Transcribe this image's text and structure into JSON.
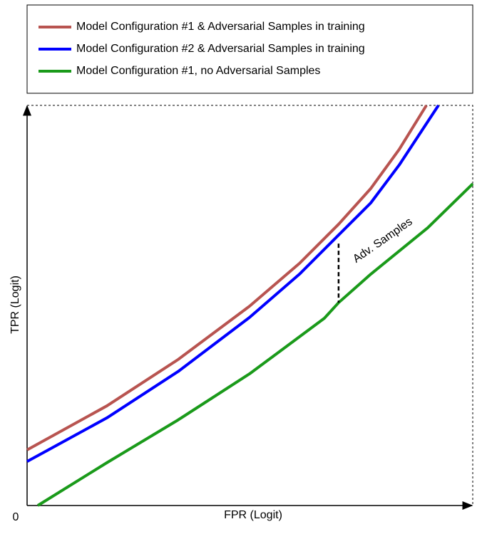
{
  "chart_data": {
    "type": "line",
    "x_label": "FPR (Logit)",
    "y_label": "TPR (Logit)",
    "annotation": "Adv. Samples",
    "xlim": [
      0,
      100
    ],
    "ylim": [
      0,
      100
    ],
    "xticks": [
      0
    ],
    "series": [
      {
        "name": "Model Configuration #1 & Adversarial Samples in training",
        "color": "#b85450",
        "x": [
          0,
          17.9,
          33.9,
          49.9,
          61.1,
          69.9,
          77.1,
          83.5,
          89.6
        ],
        "values": [
          13.9,
          24.9,
          36.5,
          49.8,
          60.5,
          70.3,
          79.2,
          89.0,
          100
        ]
      },
      {
        "name": "Model Configuration #2 & Adversarial Samples in training",
        "color": "#0000ff",
        "x": [
          0,
          17.9,
          33.9,
          49.9,
          61.1,
          69.9,
          77.1,
          83.5,
          92.3
        ],
        "values": [
          11.0,
          21.9,
          33.5,
          47.0,
          57.8,
          67.6,
          75.6,
          85.1,
          100
        ]
      },
      {
        "name": "Model Configuration #1, no Adversarial Samples",
        "color": "#1a9a1a",
        "x": [
          2.4,
          17.9,
          33.9,
          49.9,
          66.7,
          69.9,
          77.1,
          89.9,
          100
        ],
        "values": [
          0,
          10.7,
          21.4,
          32.9,
          46.8,
          50.7,
          57.8,
          69.4,
          80.4
        ]
      }
    ]
  }
}
